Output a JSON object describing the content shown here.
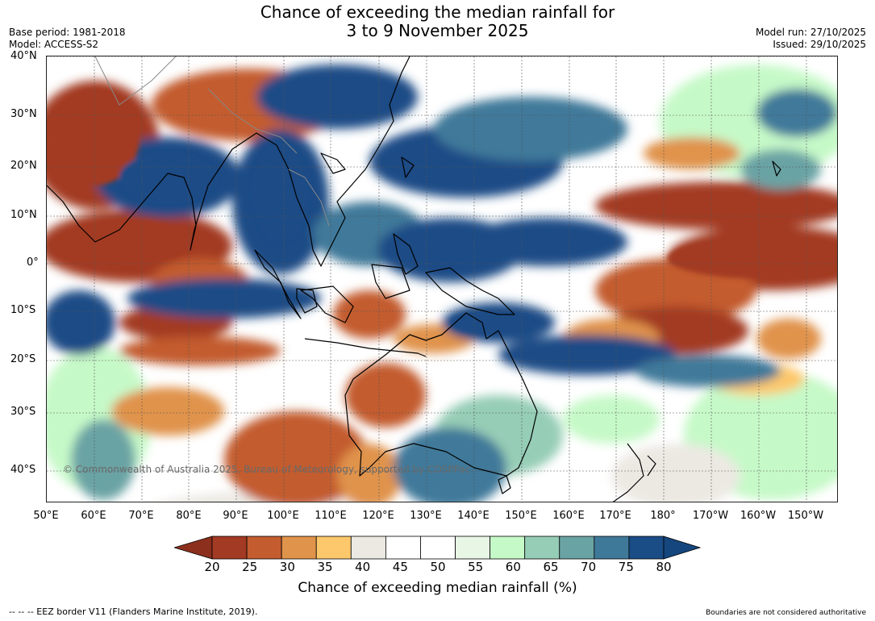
{
  "title": {
    "line1": "Chance of exceeding the median rainfall for",
    "line2": "3 to 9 November 2025"
  },
  "meta": {
    "base_period": "Base period: 1981-2018",
    "model": "Model: ACCESS-S2",
    "model_run": "Model run: 27/10/2025",
    "issued": "Issued: 29/10/2025"
  },
  "map": {
    "lat_labels": [
      "40°N",
      "30°N",
      "20°N",
      "10°N",
      "0°",
      "10°S",
      "20°S",
      "30°S",
      "40°S"
    ],
    "lon_labels": [
      "50°E",
      "60°E",
      "70°E",
      "80°E",
      "90°E",
      "100°E",
      "110°E",
      "120°E",
      "130°E",
      "140°E",
      "150°E",
      "160°E",
      "170°E",
      "180°",
      "170°W",
      "160°W",
      "150°W"
    ],
    "copyright": "© Commonwealth of Australia 2025, Bureau of Meteorology, supported by COSPPac"
  },
  "colorbar": {
    "colors": [
      "#a33a23",
      "#c35c2f",
      "#e0934b",
      "#fdc86c",
      "#ece9e3",
      "#ffffff",
      "#ffffff",
      "#e8f6e6",
      "#c6f9c8",
      "#96cdb6",
      "#6aa3a4",
      "#3f799a",
      "#1a4c86"
    ],
    "under_color": "#8c2f1d",
    "over_color": "#15467e",
    "ticks": [
      "20",
      "25",
      "30",
      "35",
      "40",
      "45",
      "50",
      "55",
      "60",
      "65",
      "70",
      "75",
      "80"
    ],
    "label": "Chance of exceeding median rainfall (%)"
  },
  "footer": {
    "legend": "--  --  -- EEZ border V11 (Flanders Marine Institute, 2019).",
    "note": "Boundaries are not considered authoritative"
  }
}
